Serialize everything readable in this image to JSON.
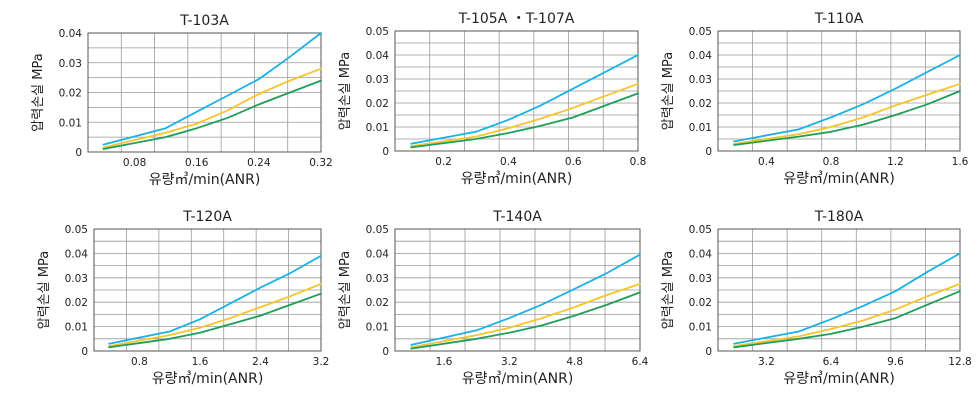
{
  "colors": {
    "blue": "#1ab2e6",
    "yellow": "#f7c52b",
    "green": "#1f9e5a"
  },
  "chart_data": [
    {
      "type": "line",
      "title": "T-103A",
      "xlabel": "유량㎥/min(ANR)",
      "ylabel": "압력손실 MPa",
      "xlim": [
        0.02,
        0.32
      ],
      "ylim": [
        0,
        0.04
      ],
      "xticks": [
        "0.08",
        "0.16",
        "0.24",
        "0.32"
      ],
      "xtick_values": [
        0.08,
        0.16,
        0.24,
        0.32
      ],
      "yticks": [
        "0",
        "0.01",
        "0.02",
        "0.03",
        "0.04"
      ],
      "ytick_values": [
        0,
        0.01,
        0.02,
        0.03,
        0.04
      ],
      "grid": true,
      "series": [
        {
          "color": "blue",
          "x": [
            0.04,
            0.12,
            0.16,
            0.2,
            0.24,
            0.28,
            0.32
          ],
          "y": [
            0.0025,
            0.008,
            0.0135,
            0.019,
            0.0245,
            0.032,
            0.04
          ]
        },
        {
          "color": "yellow",
          "x": [
            0.04,
            0.12,
            0.16,
            0.2,
            0.24,
            0.28,
            0.32
          ],
          "y": [
            0.0015,
            0.0065,
            0.0095,
            0.014,
            0.0195,
            0.024,
            0.028
          ]
        },
        {
          "color": "green",
          "x": [
            0.04,
            0.12,
            0.16,
            0.2,
            0.24,
            0.28,
            0.32
          ],
          "y": [
            0.001,
            0.005,
            0.008,
            0.0115,
            0.016,
            0.02,
            0.024
          ]
        }
      ]
    },
    {
      "type": "line",
      "title": "T-105A ・T-107A",
      "xlabel": "유량㎥/min(ANR)",
      "ylabel": "압력손실 MPa",
      "xlim": [
        0.05,
        0.8
      ],
      "ylim": [
        0,
        0.05
      ],
      "xticks": [
        "0.2",
        "0.4",
        "0.6",
        "0.8"
      ],
      "xtick_values": [
        0.2,
        0.4,
        0.6,
        0.8
      ],
      "yticks": [
        "0",
        "0.01",
        "0.02",
        "0.03",
        "0.04",
        "0.05"
      ],
      "ytick_values": [
        0,
        0.01,
        0.02,
        0.03,
        0.04,
        0.05
      ],
      "grid": true,
      "series": [
        {
          "color": "blue",
          "x": [
            0.1,
            0.3,
            0.4,
            0.5,
            0.6,
            0.7,
            0.8
          ],
          "y": [
            0.003,
            0.008,
            0.013,
            0.019,
            0.026,
            0.033,
            0.04
          ]
        },
        {
          "color": "yellow",
          "x": [
            0.1,
            0.3,
            0.4,
            0.5,
            0.6,
            0.7,
            0.8
          ],
          "y": [
            0.002,
            0.006,
            0.0095,
            0.0135,
            0.018,
            0.023,
            0.028
          ]
        },
        {
          "color": "green",
          "x": [
            0.1,
            0.3,
            0.4,
            0.5,
            0.6,
            0.7,
            0.8
          ],
          "y": [
            0.0015,
            0.005,
            0.0075,
            0.0105,
            0.014,
            0.019,
            0.024
          ]
        }
      ]
    },
    {
      "type": "line",
      "title": "T-110A",
      "xlabel": "유량㎥/min(ANR)",
      "ylabel": "압력손실 MPa",
      "xlim": [
        0.1,
        1.6
      ],
      "ylim": [
        0,
        0.05
      ],
      "xticks": [
        "0.4",
        "0.8",
        "1.2",
        "1.6"
      ],
      "xtick_values": [
        0.4,
        0.8,
        1.2,
        1.6
      ],
      "yticks": [
        "0",
        "0.01",
        "0.02",
        "0.03",
        "0.04",
        "0.05"
      ],
      "ytick_values": [
        0,
        0.01,
        0.02,
        0.03,
        0.04,
        0.05
      ],
      "grid": true,
      "series": [
        {
          "color": "blue",
          "x": [
            0.2,
            0.6,
            0.8,
            1.0,
            1.2,
            1.4,
            1.6
          ],
          "y": [
            0.004,
            0.009,
            0.014,
            0.0195,
            0.026,
            0.033,
            0.04
          ]
        },
        {
          "color": "yellow",
          "x": [
            0.2,
            0.6,
            0.8,
            1.0,
            1.2,
            1.4,
            1.6
          ],
          "y": [
            0.003,
            0.007,
            0.01,
            0.014,
            0.019,
            0.0235,
            0.028
          ]
        },
        {
          "color": "green",
          "x": [
            0.2,
            0.6,
            0.8,
            1.0,
            1.2,
            1.4,
            1.6
          ],
          "y": [
            0.0025,
            0.006,
            0.008,
            0.011,
            0.015,
            0.0195,
            0.025
          ]
        }
      ]
    },
    {
      "type": "line",
      "title": "T-120A",
      "xlabel": "유량㎥/min(ANR)",
      "ylabel": "압력손실 MPa",
      "xlim": [
        0.2,
        3.2
      ],
      "ylim": [
        0,
        0.05
      ],
      "xticks": [
        "0.8",
        "1.6",
        "2.4",
        "3.2"
      ],
      "xtick_values": [
        0.8,
        1.6,
        2.4,
        3.2
      ],
      "yticks": [
        "0",
        "0.01",
        "0.02",
        "0.03",
        "0.04",
        "0.05"
      ],
      "ytick_values": [
        0,
        0.01,
        0.02,
        0.03,
        0.04,
        0.05
      ],
      "grid": true,
      "series": [
        {
          "color": "blue",
          "x": [
            0.4,
            1.2,
            1.6,
            2.0,
            2.4,
            2.8,
            3.2
          ],
          "y": [
            0.003,
            0.008,
            0.013,
            0.0195,
            0.026,
            0.032,
            0.039
          ]
        },
        {
          "color": "yellow",
          "x": [
            0.4,
            1.2,
            1.6,
            2.0,
            2.4,
            2.8,
            3.2
          ],
          "y": [
            0.002,
            0.0065,
            0.0095,
            0.0135,
            0.018,
            0.0225,
            0.0275
          ]
        },
        {
          "color": "green",
          "x": [
            0.4,
            1.2,
            1.6,
            2.0,
            2.4,
            2.8,
            3.2
          ],
          "y": [
            0.0015,
            0.005,
            0.0075,
            0.011,
            0.0145,
            0.019,
            0.0235
          ]
        }
      ]
    },
    {
      "type": "line",
      "title": "T-140A",
      "xlabel": "유량㎥/min(ANR)",
      "ylabel": "압력손실 MPa",
      "xlim": [
        0.4,
        6.4
      ],
      "ylim": [
        0,
        0.05
      ],
      "xticks": [
        "1.6",
        "3.2",
        "4.8",
        "6.4"
      ],
      "xtick_values": [
        1.6,
        3.2,
        4.8,
        6.4
      ],
      "yticks": [
        "0",
        "0.01",
        "0.02",
        "0.03",
        "0.04",
        "0.05"
      ],
      "ytick_values": [
        0,
        0.01,
        0.02,
        0.03,
        0.04,
        0.05
      ],
      "grid": true,
      "series": [
        {
          "color": "blue",
          "x": [
            0.8,
            2.4,
            3.2,
            4.0,
            4.8,
            5.6,
            6.4
          ],
          "y": [
            0.0025,
            0.0085,
            0.0135,
            0.019,
            0.0255,
            0.032,
            0.0395
          ]
        },
        {
          "color": "yellow",
          "x": [
            0.8,
            2.4,
            3.2,
            4.0,
            4.8,
            5.6,
            6.4
          ],
          "y": [
            0.0015,
            0.0065,
            0.0095,
            0.0135,
            0.018,
            0.023,
            0.0275
          ]
        },
        {
          "color": "green",
          "x": [
            0.8,
            2.4,
            3.2,
            4.0,
            4.8,
            5.6,
            6.4
          ],
          "y": [
            0.001,
            0.005,
            0.0075,
            0.0105,
            0.0145,
            0.019,
            0.024
          ]
        }
      ]
    },
    {
      "type": "line",
      "title": "T-180A",
      "xlabel": "유량㎥/min(ANR)",
      "ylabel": "압력손실 MPa",
      "xlim": [
        0.8,
        12.8
      ],
      "ylim": [
        0,
        0.05
      ],
      "xticks": [
        "3.2",
        "6.4",
        "9.6",
        "12.8"
      ],
      "xtick_values": [
        3.2,
        6.4,
        9.6,
        12.8
      ],
      "yticks": [
        "0",
        "0.01",
        "0.02",
        "0.03",
        "0.04",
        "0.05"
      ],
      "ytick_values": [
        0,
        0.01,
        0.02,
        0.03,
        0.04,
        0.05
      ],
      "grid": true,
      "series": [
        {
          "color": "blue",
          "x": [
            1.6,
            4.8,
            6.4,
            8.0,
            9.6,
            11.2,
            12.8
          ],
          "y": [
            0.003,
            0.008,
            0.013,
            0.0185,
            0.0245,
            0.0325,
            0.04
          ]
        },
        {
          "color": "yellow",
          "x": [
            1.6,
            4.8,
            6.4,
            8.0,
            9.6,
            11.2,
            12.8
          ],
          "y": [
            0.002,
            0.006,
            0.009,
            0.0125,
            0.017,
            0.0225,
            0.0275
          ]
        },
        {
          "color": "green",
          "x": [
            1.6,
            4.8,
            6.4,
            8.0,
            9.6,
            11.2,
            12.8
          ],
          "y": [
            0.0015,
            0.005,
            0.007,
            0.01,
            0.0135,
            0.019,
            0.0245
          ]
        }
      ]
    }
  ]
}
